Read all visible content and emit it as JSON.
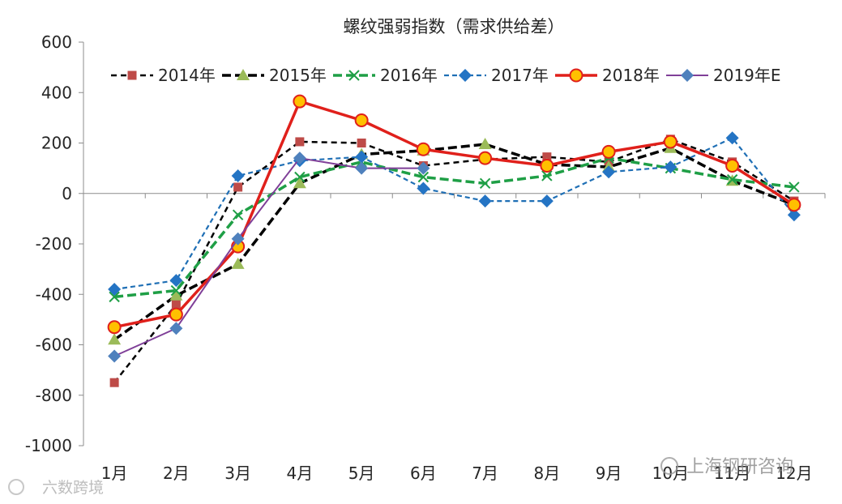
{
  "chart_data": {
    "type": "line",
    "title": "螺纹强弱指数（需求供给差）",
    "categories": [
      "1月",
      "2月",
      "3月",
      "4月",
      "5月",
      "6月",
      "7月",
      "8月",
      "9月",
      "10月",
      "11月",
      "12月"
    ],
    "ylim": [
      -1000,
      600
    ],
    "yticks": [
      600,
      400,
      200,
      0,
      -200,
      -400,
      -600,
      -800,
      -1000
    ],
    "ytick_labels": [
      "600",
      "400",
      "200",
      "0",
      "-200",
      "-400",
      "-600",
      "-800",
      "-1000"
    ],
    "series": [
      {
        "name": "2014年",
        "color": "#000000",
        "marker": "square",
        "marker_color": "#be4b48",
        "dash": "7,5",
        "width": 2.5,
        "values": [
          -750,
          -440,
          25,
          205,
          200,
          110,
          135,
          145,
          125,
          215,
          125,
          -30
        ]
      },
      {
        "name": "2015年",
        "color": "#000000",
        "marker": "triangle",
        "marker_color": "#9bbb59",
        "dash": "11,5",
        "width": 3.5,
        "values": [
          -580,
          -405,
          -280,
          40,
          155,
          170,
          195,
          115,
          105,
          180,
          50,
          -45
        ]
      },
      {
        "name": "2016年",
        "color": "#1f9f46",
        "marker": "x",
        "marker_color": "#1f9f46",
        "dash": "11,5",
        "width": 3.5,
        "values": [
          -410,
          -385,
          -85,
          65,
          125,
          65,
          40,
          70,
          140,
          100,
          55,
          25
        ]
      },
      {
        "name": "2017年",
        "color": "#1f6fb5",
        "marker": "diamond",
        "marker_color": "#2474c4",
        "dash": "6,4",
        "width": 2.2,
        "values": [
          -380,
          -345,
          70,
          130,
          145,
          20,
          -30,
          -30,
          85,
          105,
          220,
          -85
        ]
      },
      {
        "name": "2018年",
        "color": "#e0201b",
        "marker": "circle",
        "marker_color": "#ffc000",
        "dash": "",
        "width": 3.5,
        "values": [
          -530,
          -480,
          -210,
          365,
          290,
          175,
          140,
          110,
          165,
          205,
          110,
          -45
        ]
      },
      {
        "name": "2019年E",
        "color": "#7f3f98",
        "marker": "diamond",
        "marker_color": "#4f81bd",
        "dash": "",
        "width": 2,
        "values": [
          -645,
          -535,
          -180,
          140,
          100,
          100,
          null,
          null,
          null,
          null,
          null,
          null
        ]
      }
    ],
    "legend_position": "top"
  },
  "watermark": {
    "left_text": "六数跨境",
    "right_text": "上海钢研咨询"
  }
}
